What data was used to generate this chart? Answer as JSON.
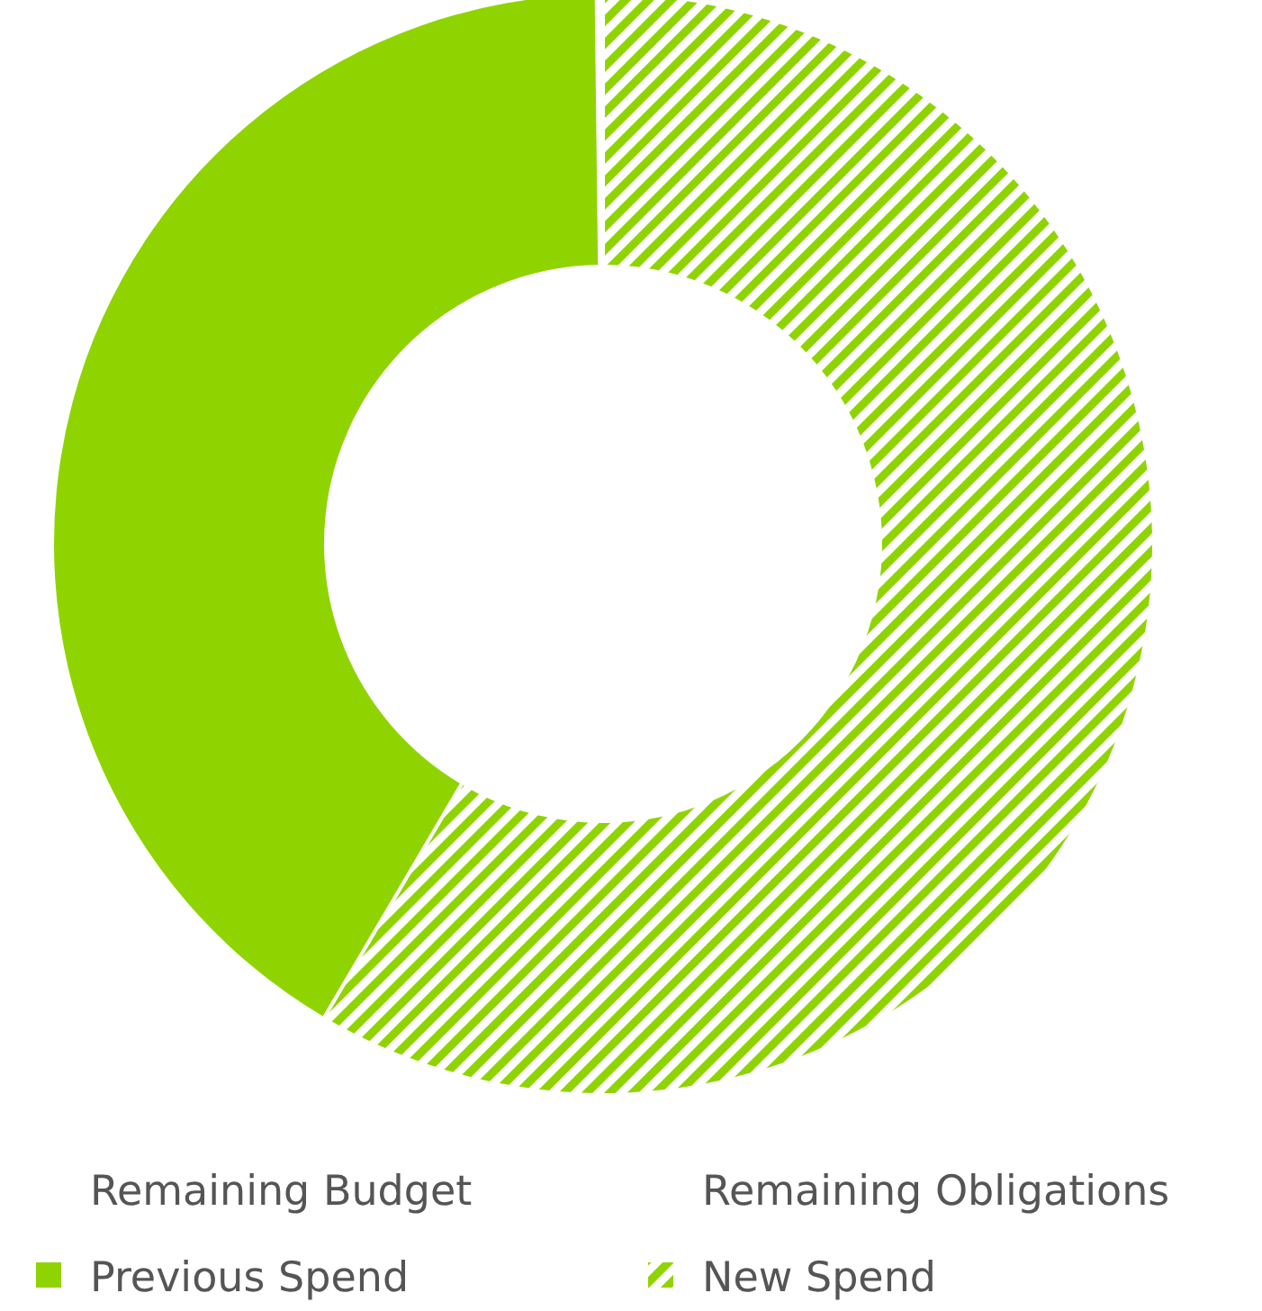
{
  "chart_data": {
    "type": "donut",
    "categories": [
      "Remaining Budget",
      "Remaining Obligations",
      "Previous Spend",
      "New Spend"
    ],
    "values": [
      0,
      0,
      41.4,
      58.6
    ],
    "colors": [
      "#ffffff",
      "#ffffff",
      "#8fd400",
      "#8fd400"
    ],
    "legend": "bottom"
  }
}
